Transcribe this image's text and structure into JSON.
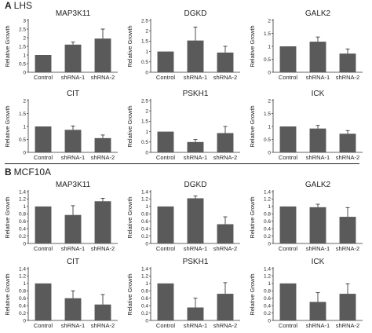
{
  "panels": [
    {
      "letter": "A",
      "name": "LHS"
    },
    {
      "letter": "B",
      "name": "MCF10A"
    }
  ],
  "chart_data": [
    {
      "type": "bar",
      "panel": "A",
      "title": "MAP3K11",
      "ylabel": "Relative Growth",
      "categories": [
        "Control",
        "shRNA-1",
        "shRNA-2"
      ],
      "values": [
        1.0,
        1.6,
        1.95
      ],
      "errors": [
        0.0,
        0.15,
        0.55
      ],
      "ylim": [
        0,
        3
      ],
      "yticks": [
        0,
        0.5,
        1,
        1.5,
        2,
        2.5,
        3
      ]
    },
    {
      "type": "bar",
      "panel": "A",
      "title": "DGKD",
      "ylabel": "Relative Growth",
      "categories": [
        "Control",
        "shRNA-1",
        "shRNA-2"
      ],
      "values": [
        1.0,
        1.53,
        0.95
      ],
      "errors": [
        0.0,
        0.65,
        0.3
      ],
      "ylim": [
        0,
        2.5
      ],
      "yticks": [
        0,
        0.5,
        1,
        1.5,
        2,
        2.5
      ]
    },
    {
      "type": "bar",
      "panel": "A",
      "title": "GALK2",
      "ylabel": "Relative Growth",
      "categories": [
        "Control",
        "shRNA-1",
        "shRNA-2"
      ],
      "values": [
        1.0,
        1.18,
        0.72
      ],
      "errors": [
        0.0,
        0.18,
        0.18
      ],
      "ylim": [
        0,
        2
      ],
      "yticks": [
        0,
        0.5,
        1,
        1.5,
        2
      ]
    },
    {
      "type": "bar",
      "panel": "A",
      "title": "CIT",
      "ylabel": "Relative Growth",
      "categories": [
        "Control",
        "shRNA-1",
        "shRNA-2"
      ],
      "values": [
        1.0,
        0.87,
        0.55
      ],
      "errors": [
        0.0,
        0.15,
        0.12
      ],
      "ylim": [
        0,
        2
      ],
      "yticks": [
        0,
        0.5,
        1,
        1.5,
        2
      ]
    },
    {
      "type": "bar",
      "panel": "A",
      "title": "PSKH1",
      "ylabel": "Relative Growth",
      "categories": [
        "Control",
        "shRNA-1",
        "shRNA-2"
      ],
      "values": [
        1.0,
        0.5,
        0.93
      ],
      "errors": [
        0.0,
        0.12,
        0.32
      ],
      "ylim": [
        0,
        2.5
      ],
      "yticks": [
        0,
        0.5,
        1,
        1.5,
        2,
        2.5
      ]
    },
    {
      "type": "bar",
      "panel": "A",
      "title": "ICK",
      "ylabel": "Relative Growth",
      "categories": [
        "Control",
        "shRNA-1",
        "shRNA-2"
      ],
      "values": [
        1.0,
        0.92,
        0.72
      ],
      "errors": [
        0.0,
        0.12,
        0.12
      ],
      "ylim": [
        0,
        2
      ],
      "yticks": [
        0,
        0.5,
        1,
        1.5,
        2
      ]
    },
    {
      "type": "bar",
      "panel": "B",
      "title": "MAP3K11",
      "ylabel": "Relative Growth",
      "categories": [
        "Control",
        "shRNA-1",
        "shRNA-2"
      ],
      "values": [
        1.0,
        0.77,
        1.14
      ],
      "errors": [
        0.0,
        0.25,
        0.08
      ],
      "ylim": [
        0,
        1.4
      ],
      "yticks": [
        0,
        0.2,
        0.4,
        0.6,
        0.8,
        1,
        1.2,
        1.4
      ]
    },
    {
      "type": "bar",
      "panel": "B",
      "title": "DGKD",
      "ylabel": "Relative Growth",
      "categories": [
        "Control",
        "shRNA-1",
        "shRNA-2"
      ],
      "values": [
        1.0,
        1.22,
        0.52
      ],
      "errors": [
        0.0,
        0.06,
        0.2
      ],
      "ylim": [
        0,
        1.4
      ],
      "yticks": [
        0,
        0.2,
        0.4,
        0.6,
        0.8,
        1,
        1.2,
        1.4
      ]
    },
    {
      "type": "bar",
      "panel": "B",
      "title": "GALK2",
      "ylabel": "Relative Growth",
      "categories": [
        "Control",
        "shRNA-1",
        "shRNA-2"
      ],
      "values": [
        1.0,
        0.98,
        0.72
      ],
      "errors": [
        0.0,
        0.08,
        0.25
      ],
      "ylim": [
        0,
        1.4
      ],
      "yticks": [
        0,
        0.2,
        0.4,
        0.6,
        0.8,
        1,
        1.2,
        1.4
      ]
    },
    {
      "type": "bar",
      "panel": "B",
      "title": "CIT",
      "ylabel": "Relative Growth",
      "categories": [
        "Control",
        "shRNA-1",
        "shRNA-2"
      ],
      "values": [
        1.0,
        0.6,
        0.43
      ],
      "errors": [
        0.0,
        0.2,
        0.27
      ],
      "ylim": [
        0,
        1.4
      ],
      "yticks": [
        0,
        0.2,
        0.4,
        0.6,
        0.8,
        1,
        1.2,
        1.4
      ]
    },
    {
      "type": "bar",
      "panel": "B",
      "title": "PSKH1",
      "ylabel": "Relative Growth",
      "categories": [
        "Control",
        "shRNA-1",
        "shRNA-2"
      ],
      "values": [
        1.0,
        0.35,
        0.72
      ],
      "errors": [
        0.0,
        0.25,
        0.3
      ],
      "ylim": [
        0,
        1.4
      ],
      "yticks": [
        0,
        0.2,
        0.4,
        0.6,
        0.8,
        1,
        1.2,
        1.4
      ]
    },
    {
      "type": "bar",
      "panel": "B",
      "title": "ICK",
      "ylabel": "Relative Growth",
      "categories": [
        "Control",
        "shRNA-1",
        "shRNA-2"
      ],
      "values": [
        1.0,
        0.5,
        0.72
      ],
      "errors": [
        0.0,
        0.25,
        0.27
      ],
      "ylim": [
        0,
        1.4
      ],
      "yticks": [
        0,
        0.2,
        0.4,
        0.6,
        0.8,
        1,
        1.2,
        1.4
      ]
    }
  ],
  "colors": {
    "bar": "#5a5a5a",
    "axis": "#333333",
    "text": "#222222"
  }
}
